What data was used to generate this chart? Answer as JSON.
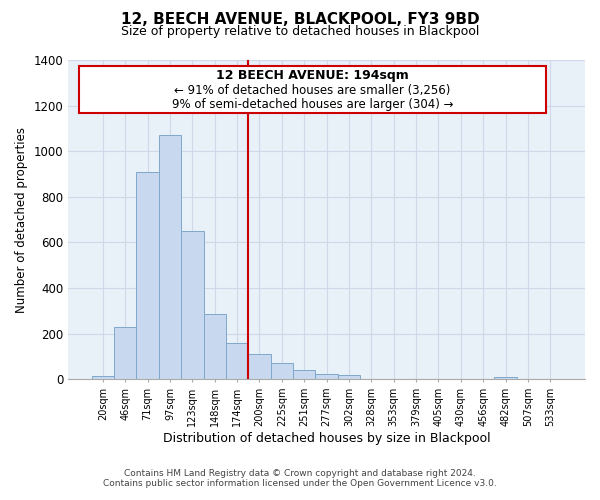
{
  "title": "12, BEECH AVENUE, BLACKPOOL, FY3 9BD",
  "subtitle": "Size of property relative to detached houses in Blackpool",
  "xlabel": "Distribution of detached houses by size in Blackpool",
  "ylabel": "Number of detached properties",
  "bar_labels": [
    "20sqm",
    "46sqm",
    "71sqm",
    "97sqm",
    "123sqm",
    "148sqm",
    "174sqm",
    "200sqm",
    "225sqm",
    "251sqm",
    "277sqm",
    "302sqm",
    "328sqm",
    "353sqm",
    "379sqm",
    "405sqm",
    "430sqm",
    "456sqm",
    "482sqm",
    "507sqm",
    "533sqm"
  ],
  "bar_heights": [
    15,
    228,
    910,
    1070,
    650,
    285,
    160,
    110,
    72,
    40,
    25,
    18,
    0,
    0,
    0,
    0,
    0,
    0,
    12,
    0,
    0
  ],
  "bar_color": "#c8d9ef",
  "bar_edge_color": "#7fa8cc",
  "vline_color": "#cc0000",
  "annotation_title": "12 BEECH AVENUE: 194sqm",
  "annotation_line1": "← 91% of detached houses are smaller (3,256)",
  "annotation_line2": "9% of semi-detached houses are larger (304) →",
  "annotation_box_color": "#ffffff",
  "annotation_box_edge": "#cc0000",
  "ylim": [
    0,
    1400
  ],
  "yticks": [
    0,
    200,
    400,
    600,
    800,
    1000,
    1200,
    1400
  ],
  "footer1": "Contains HM Land Registry data © Crown copyright and database right 2024.",
  "footer2": "Contains public sector information licensed under the Open Government Licence v3.0.",
  "bg_color": "#ffffff",
  "grid_color": "#d0d8e8",
  "vline_index": 7
}
